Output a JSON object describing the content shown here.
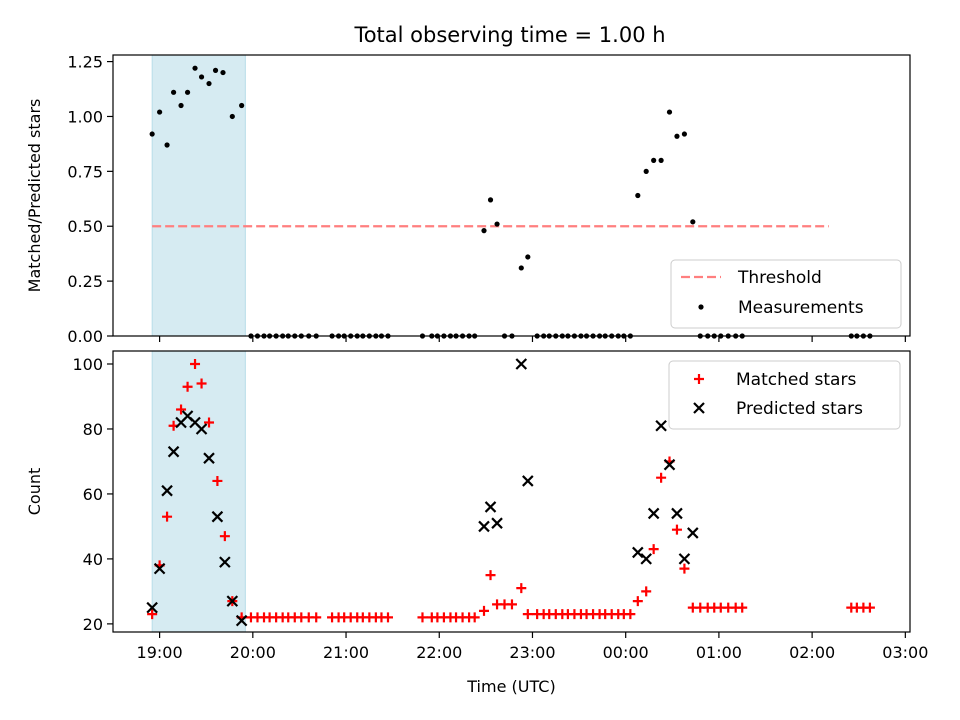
{
  "figure_title": "Total observing time = 1.00 h",
  "chart_data": [
    {
      "type": "scatter",
      "ylabel": "Matched/Predicted stars",
      "ylim": [
        0,
        1.28
      ],
      "xlim_hours": [
        18.5,
        27.05
      ],
      "yticks": [
        0.0,
        0.25,
        0.5,
        0.75,
        1.0,
        1.25
      ],
      "ytick_labels": [
        "0.00",
        "0.25",
        "0.50",
        "0.75",
        "1.00",
        "1.25"
      ],
      "shaded_span_hours": [
        18.92,
        19.92
      ],
      "threshold": {
        "name": "Threshold",
        "y": 0.5,
        "x_range_hours": [
          18.92,
          26.18
        ],
        "color": "#ff7f7f",
        "style": "dashed"
      },
      "series": [
        {
          "name": "Measurements",
          "marker": "dot",
          "color": "#000000",
          "points": [
            [
              18.92,
              0.92
            ],
            [
              19.0,
              1.02
            ],
            [
              19.08,
              0.87
            ],
            [
              19.15,
              1.11
            ],
            [
              19.23,
              1.05
            ],
            [
              19.3,
              1.11
            ],
            [
              19.38,
              1.22
            ],
            [
              19.45,
              1.18
            ],
            [
              19.53,
              1.15
            ],
            [
              19.6,
              1.21
            ],
            [
              19.68,
              1.2
            ],
            [
              19.78,
              1.0
            ],
            [
              19.88,
              1.05
            ],
            [
              19.98,
              0
            ],
            [
              20.05,
              0
            ],
            [
              20.12,
              0
            ],
            [
              20.18,
              0
            ],
            [
              20.25,
              0
            ],
            [
              20.32,
              0
            ],
            [
              20.38,
              0
            ],
            [
              20.45,
              0
            ],
            [
              20.52,
              0
            ],
            [
              20.6,
              0
            ],
            [
              20.68,
              0
            ],
            [
              20.85,
              0
            ],
            [
              20.92,
              0
            ],
            [
              20.98,
              0
            ],
            [
              21.05,
              0
            ],
            [
              21.12,
              0
            ],
            [
              21.18,
              0
            ],
            [
              21.25,
              0
            ],
            [
              21.32,
              0
            ],
            [
              21.38,
              0
            ],
            [
              21.45,
              0
            ],
            [
              21.82,
              0
            ],
            [
              21.92,
              0
            ],
            [
              21.98,
              0
            ],
            [
              22.05,
              0
            ],
            [
              22.12,
              0
            ],
            [
              22.18,
              0
            ],
            [
              22.25,
              0
            ],
            [
              22.32,
              0
            ],
            [
              22.38,
              0
            ],
            [
              22.48,
              0.48
            ],
            [
              22.55,
              0.62
            ],
            [
              22.62,
              0.51
            ],
            [
              22.7,
              0
            ],
            [
              22.78,
              0
            ],
            [
              22.88,
              0.31
            ],
            [
              22.95,
              0.36
            ],
            [
              23.05,
              0
            ],
            [
              23.12,
              0
            ],
            [
              23.18,
              0
            ],
            [
              23.25,
              0
            ],
            [
              23.32,
              0
            ],
            [
              23.38,
              0
            ],
            [
              23.45,
              0
            ],
            [
              23.52,
              0
            ],
            [
              23.58,
              0
            ],
            [
              23.65,
              0
            ],
            [
              23.72,
              0
            ],
            [
              23.78,
              0
            ],
            [
              23.85,
              0
            ],
            [
              23.92,
              0
            ],
            [
              23.98,
              0
            ],
            [
              24.05,
              0
            ],
            [
              24.13,
              0.64
            ],
            [
              24.22,
              0.75
            ],
            [
              24.3,
              0.8
            ],
            [
              24.38,
              0.8
            ],
            [
              24.47,
              1.02
            ],
            [
              24.55,
              0.91
            ],
            [
              24.63,
              0.92
            ],
            [
              24.72,
              0.52
            ],
            [
              24.8,
              0
            ],
            [
              24.88,
              0
            ],
            [
              24.95,
              0
            ],
            [
              25.02,
              0
            ],
            [
              25.1,
              0
            ],
            [
              25.18,
              0
            ],
            [
              25.25,
              0
            ],
            [
              26.42,
              0
            ],
            [
              26.48,
              0
            ],
            [
              26.55,
              0
            ],
            [
              26.62,
              0
            ]
          ]
        }
      ],
      "legend": {
        "position": "lower-right",
        "entries": [
          "Threshold",
          "Measurements"
        ]
      }
    },
    {
      "type": "scatter",
      "ylabel": "Count",
      "xlabel": "Time (UTC)",
      "ylim": [
        17.5,
        104
      ],
      "xlim_hours": [
        18.5,
        27.05
      ],
      "yticks": [
        20,
        40,
        60,
        80,
        100
      ],
      "ytick_labels": [
        "20",
        "40",
        "60",
        "80",
        "100"
      ],
      "xticks_hours": [
        19,
        20,
        21,
        22,
        23,
        24,
        25,
        26,
        27
      ],
      "xtick_labels": [
        "19:00",
        "20:00",
        "21:00",
        "22:00",
        "23:00",
        "00:00",
        "01:00",
        "02:00",
        "03:00"
      ],
      "shaded_span_hours": [
        18.92,
        19.92
      ],
      "series": [
        {
          "name": "Matched stars",
          "marker": "plus",
          "color": "#ff0000",
          "points": [
            [
              18.92,
              23
            ],
            [
              19.0,
              38
            ],
            [
              19.08,
              53
            ],
            [
              19.15,
              81
            ],
            [
              19.23,
              86
            ],
            [
              19.3,
              93
            ],
            [
              19.38,
              100
            ],
            [
              19.45,
              94
            ],
            [
              19.53,
              82
            ],
            [
              19.62,
              64
            ],
            [
              19.7,
              47
            ],
            [
              19.78,
              27
            ],
            [
              19.88,
              22
            ],
            [
              19.98,
              22
            ],
            [
              20.05,
              22
            ],
            [
              20.12,
              22
            ],
            [
              20.18,
              22
            ],
            [
              20.25,
              22
            ],
            [
              20.32,
              22
            ],
            [
              20.38,
              22
            ],
            [
              20.45,
              22
            ],
            [
              20.52,
              22
            ],
            [
              20.6,
              22
            ],
            [
              20.68,
              22
            ],
            [
              20.85,
              22
            ],
            [
              20.92,
              22
            ],
            [
              20.98,
              22
            ],
            [
              21.05,
              22
            ],
            [
              21.12,
              22
            ],
            [
              21.18,
              22
            ],
            [
              21.25,
              22
            ],
            [
              21.32,
              22
            ],
            [
              21.38,
              22
            ],
            [
              21.45,
              22
            ],
            [
              21.82,
              22
            ],
            [
              21.92,
              22
            ],
            [
              21.98,
              22
            ],
            [
              22.05,
              22
            ],
            [
              22.12,
              22
            ],
            [
              22.18,
              22
            ],
            [
              22.25,
              22
            ],
            [
              22.32,
              22
            ],
            [
              22.38,
              22
            ],
            [
              22.48,
              24
            ],
            [
              22.55,
              35
            ],
            [
              22.62,
              26
            ],
            [
              22.7,
              26
            ],
            [
              22.78,
              26
            ],
            [
              22.88,
              31
            ],
            [
              22.95,
              23
            ],
            [
              23.05,
              23
            ],
            [
              23.12,
              23
            ],
            [
              23.18,
              23
            ],
            [
              23.25,
              23
            ],
            [
              23.32,
              23
            ],
            [
              23.38,
              23
            ],
            [
              23.45,
              23
            ],
            [
              23.52,
              23
            ],
            [
              23.58,
              23
            ],
            [
              23.65,
              23
            ],
            [
              23.72,
              23
            ],
            [
              23.78,
              23
            ],
            [
              23.85,
              23
            ],
            [
              23.92,
              23
            ],
            [
              23.98,
              23
            ],
            [
              24.05,
              23
            ],
            [
              24.13,
              27
            ],
            [
              24.22,
              30
            ],
            [
              24.3,
              43
            ],
            [
              24.38,
              65
            ],
            [
              24.47,
              70
            ],
            [
              24.55,
              49
            ],
            [
              24.63,
              37
            ],
            [
              24.72,
              25
            ],
            [
              24.8,
              25
            ],
            [
              24.88,
              25
            ],
            [
              24.95,
              25
            ],
            [
              25.02,
              25
            ],
            [
              25.1,
              25
            ],
            [
              25.18,
              25
            ],
            [
              25.25,
              25
            ],
            [
              26.42,
              25
            ],
            [
              26.48,
              25
            ],
            [
              26.55,
              25
            ],
            [
              26.62,
              25
            ]
          ]
        },
        {
          "name": "Predicted stars",
          "marker": "x",
          "color": "#000000",
          "points": [
            [
              18.92,
              25
            ],
            [
              19.0,
              37
            ],
            [
              19.08,
              61
            ],
            [
              19.15,
              73
            ],
            [
              19.23,
              82
            ],
            [
              19.3,
              84
            ],
            [
              19.38,
              82
            ],
            [
              19.45,
              80
            ],
            [
              19.53,
              71
            ],
            [
              19.62,
              53
            ],
            [
              19.7,
              39
            ],
            [
              19.78,
              27
            ],
            [
              19.88,
              21
            ],
            [
              22.48,
              50
            ],
            [
              22.55,
              56
            ],
            [
              22.62,
              51
            ],
            [
              22.88,
              100
            ],
            [
              22.95,
              64
            ],
            [
              24.13,
              42
            ],
            [
              24.22,
              40
            ],
            [
              24.3,
              54
            ],
            [
              24.38,
              81
            ],
            [
              24.47,
              69
            ],
            [
              24.55,
              54
            ],
            [
              24.63,
              40
            ],
            [
              24.72,
              48
            ]
          ]
        }
      ],
      "legend": {
        "position": "top-right",
        "entries": [
          "Matched stars",
          "Predicted stars"
        ]
      }
    }
  ]
}
